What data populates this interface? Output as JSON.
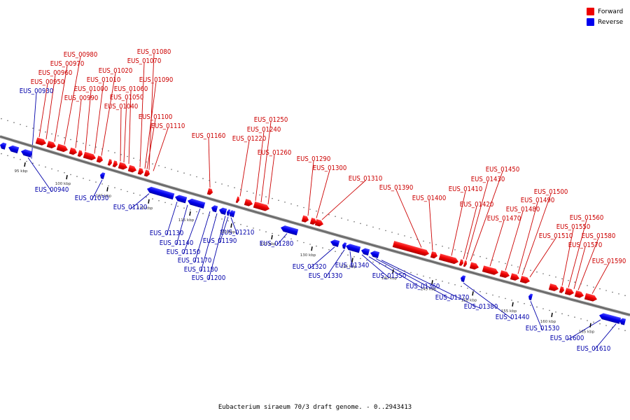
{
  "caption": "Eubacterium siraeum 70/3 draft genome. - 0..2943413",
  "legend": [
    {
      "label": "Forward",
      "color": "#ee0000"
    },
    {
      "label": "Reverse",
      "color": "#0000ee"
    }
  ],
  "backbone_ticks": [
    "95 kbp",
    "100 kbp",
    "105 kbp",
    "110 kbp",
    "115 kbp",
    "120 kbp",
    "125 kbp",
    "130 kbp",
    "135 kbp",
    "140 kbp",
    "145 kbp",
    "150 kbp",
    "155 kbp",
    "160 kbp",
    "165 kbp"
  ],
  "forward_labels": [
    "EUS_00980",
    "EUS_00970",
    "EUS_00960",
    "EUS_00950",
    "EUS_01020",
    "EUS_01010",
    "EUS_01000",
    "EUS_00990",
    "EUS_01080",
    "EUS_01070",
    "EUS_01060",
    "EUS_01050",
    "EUS_01040",
    "EUS_01090",
    "EUS_01100",
    "EUS_01110",
    "EUS_01160",
    "EUS_01250",
    "EUS_01240",
    "EUS_01220",
    "EUS_01260",
    "EUS_01290",
    "EUS_01300",
    "EUS_01310",
    "EUS_01390",
    "EUS_01400",
    "EUS_01450",
    "EUS_01430",
    "EUS_01410",
    "EUS_01420",
    "EUS_01500",
    "EUS_01490",
    "EUS_01480",
    "EUS_01470",
    "EUS_01560",
    "EUS_01550",
    "EUS_01510",
    "EUS_01580",
    "EUS_01570",
    "EUS_01590"
  ],
  "reverse_labels": [
    "EUS_00930",
    "EUS_00940",
    "EUS_01030",
    "EUS_01120",
    "EUS_01130",
    "EUS_01140",
    "EUS_01150",
    "EUS_01170",
    "EUS_01180",
    "EUS_01200",
    "EUS_01190",
    "EUS_01210",
    "EUS_01280",
    "EUS_01320",
    "EUS_01330",
    "EUS_01340",
    "EUS_01350",
    "EUS_01360",
    "EUS_01370",
    "EUS_01380",
    "EUS_01440",
    "EUS_01530",
    "EUS_01600",
    "EUS_01610"
  ]
}
